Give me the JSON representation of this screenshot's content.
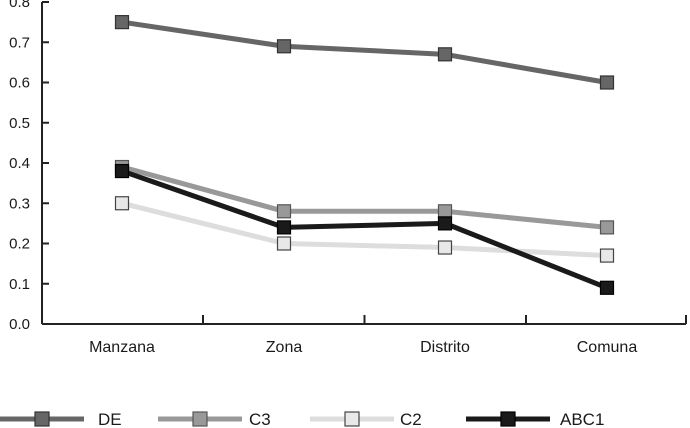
{
  "chart_data": {
    "type": "line",
    "title": "",
    "xlabel": "",
    "ylabel": "",
    "categories": [
      "Manzana",
      "Zona",
      "Distrito",
      "Comuna"
    ],
    "ylim": [
      0,
      0.8
    ],
    "yticks": [
      "0.0",
      "0.1",
      "0.2",
      "0.3",
      "0.4",
      "0.5",
      "0.6",
      "0.7",
      "0.8"
    ],
    "grid": false,
    "legend_position": "bottom",
    "series": [
      {
        "name": "DE",
        "values": [
          0.75,
          0.69,
          0.67,
          0.6
        ],
        "line_color": "#666666",
        "marker_fill": "#666666",
        "marker_stroke": "#333333"
      },
      {
        "name": "C3",
        "values": [
          0.39,
          0.28,
          0.28,
          0.24
        ],
        "line_color": "#999999",
        "marker_fill": "#999999",
        "marker_stroke": "#555555"
      },
      {
        "name": "C2",
        "values": [
          0.3,
          0.2,
          0.19,
          0.17
        ],
        "line_color": "#dddddd",
        "marker_fill": "#e8e8e8",
        "marker_stroke": "#444444"
      },
      {
        "name": "ABC1",
        "values": [
          0.38,
          0.24,
          0.25,
          0.09
        ],
        "line_color": "#1a1a1a",
        "marker_fill": "#1a1a1a",
        "marker_stroke": "#000000"
      }
    ]
  }
}
